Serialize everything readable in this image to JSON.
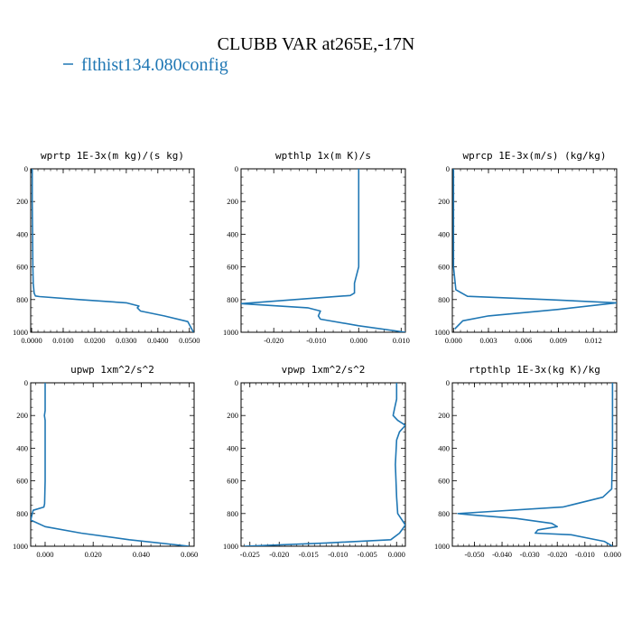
{
  "title": "CLUBB VAR at265E,-17N",
  "legend": [
    {
      "label": "flthist134.080config",
      "color": "#1f77b4"
    }
  ],
  "chart_data": [
    {
      "type": "line",
      "title": "wprtp  1E-3x(m kg)/(s kg)",
      "xlim": [
        -0.0003,
        0.0515
      ],
      "ylim": [
        1000,
        0
      ],
      "xticks": [
        0,
        0.01,
        0.02,
        0.03,
        0.04,
        0.05
      ],
      "xtick_labels": [
        "0.0000",
        "0.0100",
        "0.0200",
        "0.0300",
        "0.0400",
        "0.0500"
      ],
      "yticks": [
        0,
        200,
        400,
        600,
        800,
        1000
      ],
      "ytick_labels": [
        "0",
        "200",
        "400",
        "600",
        "800",
        "1000"
      ],
      "series": [
        {
          "name": "flthist134.080config",
          "x": [
            0.0002,
            0.0002,
            0.0003,
            0.0004,
            0.0005,
            0.0008,
            0.0012,
            0.0025,
            0.015,
            0.03,
            0.034,
            0.0335,
            0.0345,
            0.042,
            0.0495,
            0.0513
          ],
          "y": [
            0,
            200,
            400,
            600,
            700,
            760,
            778,
            782,
            800,
            820,
            840,
            850,
            870,
            900,
            935,
            1000
          ]
        }
      ]
    },
    {
      "type": "line",
      "title": "wpthlp  1x(m K)/s",
      "xlim": [
        -0.0277,
        0.011
      ],
      "ylim": [
        1000,
        0
      ],
      "xticks": [
        -0.02,
        -0.01,
        0,
        0.01
      ],
      "xtick_labels": [
        "-0.020",
        "-0.010",
        "0.000",
        "0.010"
      ],
      "yticks": [
        0,
        200,
        400,
        600,
        800,
        1000
      ],
      "ytick_labels": [
        "0",
        "200",
        "400",
        "600",
        "800",
        "1000"
      ],
      "series": [
        {
          "name": "flthist134.080config",
          "x": [
            0,
            0,
            0,
            0,
            -0.001,
            -0.001,
            -0.002,
            -0.015,
            -0.0277,
            -0.012,
            -0.009,
            -0.0095,
            -0.009,
            0.0,
            0.011
          ],
          "y": [
            0,
            200,
            400,
            600,
            700,
            760,
            775,
            800,
            825,
            850,
            870,
            900,
            920,
            960,
            1000
          ]
        }
      ]
    },
    {
      "type": "line",
      "title": "wprcp  1E-3x(m/s) (kg/kg)",
      "xlim": [
        -0.0001,
        0.014
      ],
      "ylim": [
        1000,
        0
      ],
      "xticks": [
        0,
        0.003,
        0.006,
        0.009,
        0.012
      ],
      "xtick_labels": [
        "0.000",
        "0.003",
        "0.006",
        "0.009",
        "0.012"
      ],
      "yticks": [
        0,
        200,
        400,
        600,
        800,
        1000
      ],
      "ytick_labels": [
        "0",
        "200",
        "400",
        "600",
        "800",
        "1000"
      ],
      "series": [
        {
          "name": "flthist134.080config",
          "x": [
            0,
            0,
            0,
            0,
            0.0002,
            0.0012,
            0.008,
            0.014,
            0.009,
            0.003,
            0.0008,
            0.0001
          ],
          "y": [
            0,
            200,
            400,
            600,
            740,
            780,
            800,
            820,
            860,
            900,
            930,
            980
          ]
        }
      ]
    },
    {
      "type": "line",
      "title": "upwp  1xm^2/s^2",
      "xlim": [
        -0.006,
        0.062
      ],
      "ylim": [
        1000,
        0
      ],
      "xticks": [
        0,
        0.02,
        0.04,
        0.06
      ],
      "xtick_labels": [
        "0.000",
        "0.020",
        "0.040",
        "0.060"
      ],
      "yticks": [
        0,
        200,
        400,
        600,
        800,
        1000
      ],
      "ytick_labels": [
        "0",
        "200",
        "400",
        "600",
        "800",
        "1000"
      ],
      "series": [
        {
          "name": "flthist134.080config",
          "x": [
            0.0,
            0.0,
            -0.0003,
            0.0,
            0.0,
            0.0,
            -0.0002,
            -0.0005,
            -0.005,
            -0.006,
            0.0,
            0.015,
            0.035,
            0.06
          ],
          "y": [
            0,
            170,
            200,
            230,
            400,
            600,
            740,
            760,
            780,
            840,
            880,
            920,
            960,
            1000
          ]
        }
      ]
    },
    {
      "type": "line",
      "title": "vpwp  1xm^2/s^2",
      "xlim": [
        -0.0265,
        0.0015
      ],
      "ylim": [
        1000,
        0
      ],
      "xticks": [
        -0.025,
        -0.02,
        -0.015,
        -0.01,
        -0.005,
        0
      ],
      "xtick_labels": [
        "-0.025",
        "-0.020",
        "-0.015",
        "-0.010",
        "-0.005",
        "0.000"
      ],
      "yticks": [
        0,
        200,
        400,
        600,
        800,
        1000
      ],
      "ytick_labels": [
        "0",
        "200",
        "400",
        "600",
        "800",
        "1000"
      ],
      "series": [
        {
          "name": "flthist134.080config",
          "x": [
            0.0,
            0.0,
            -0.0003,
            -0.0006,
            0.0002,
            0.0015,
            0.0005,
            0.0,
            -0.0002,
            0.0,
            0.0002,
            0.0015,
            0.0005,
            -0.001,
            -0.012,
            -0.026
          ],
          "y": [
            0,
            100,
            150,
            200,
            230,
            260,
            300,
            350,
            500,
            700,
            800,
            870,
            920,
            960,
            980,
            1000
          ]
        }
      ]
    },
    {
      "type": "line",
      "title": "rtpthlp  1E-3x(kg K)/kg",
      "xlim": [
        -0.058,
        0.0015
      ],
      "ylim": [
        1000,
        0
      ],
      "xticks": [
        -0.05,
        -0.04,
        -0.03,
        -0.02,
        -0.01,
        0
      ],
      "xtick_labels": [
        "-0.050",
        "-0.040",
        "-0.030",
        "-0.020",
        "-0.010",
        "0.000"
      ],
      "yticks": [
        0,
        200,
        400,
        600,
        800,
        1000
      ],
      "ytick_labels": [
        "0",
        "200",
        "400",
        "600",
        "800",
        "1000"
      ],
      "series": [
        {
          "name": "flthist134.080config",
          "x": [
            0,
            0,
            0,
            -0.0003,
            -0.0035,
            -0.018,
            -0.056,
            -0.05,
            -0.035,
            -0.022,
            -0.02,
            -0.027,
            -0.028,
            -0.015,
            -0.003,
            0.0
          ],
          "y": [
            0,
            200,
            400,
            650,
            700,
            760,
            800,
            810,
            830,
            860,
            880,
            900,
            920,
            930,
            970,
            1000
          ]
        }
      ]
    }
  ]
}
